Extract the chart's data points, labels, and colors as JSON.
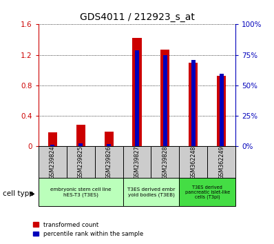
{
  "title": "GDS4011 / 212923_s_at",
  "samples": [
    "GSM239824",
    "GSM239825",
    "GSM239826",
    "GSM239827",
    "GSM239828",
    "GSM362248",
    "GSM362249"
  ],
  "red_values": [
    0.18,
    0.28,
    0.19,
    1.42,
    1.27,
    1.1,
    0.93
  ],
  "blue_percentiles": [
    1.25,
    2.5,
    1.875,
    79.0,
    75.0,
    70.6,
    59.4
  ],
  "ylim_left": [
    0,
    1.6
  ],
  "ylim_right": [
    0,
    100
  ],
  "yticks_left": [
    0,
    0.4,
    0.8,
    1.2,
    1.6
  ],
  "ytick_labels_left": [
    "0",
    "0.4",
    "0.8",
    "1.2",
    "1.6"
  ],
  "yticks_right": [
    0,
    25,
    50,
    75,
    100
  ],
  "ytick_labels_right": [
    "0%",
    "25%",
    "50%",
    "75%",
    "100%"
  ],
  "red_color": "#cc0000",
  "blue_color": "#0000bb",
  "bg_color": "#ffffff",
  "tick_bg_color": "#cccccc",
  "grp1_color": "#bbffbb",
  "grp2_color": "#bbffbb",
  "grp3_color": "#44dd44"
}
